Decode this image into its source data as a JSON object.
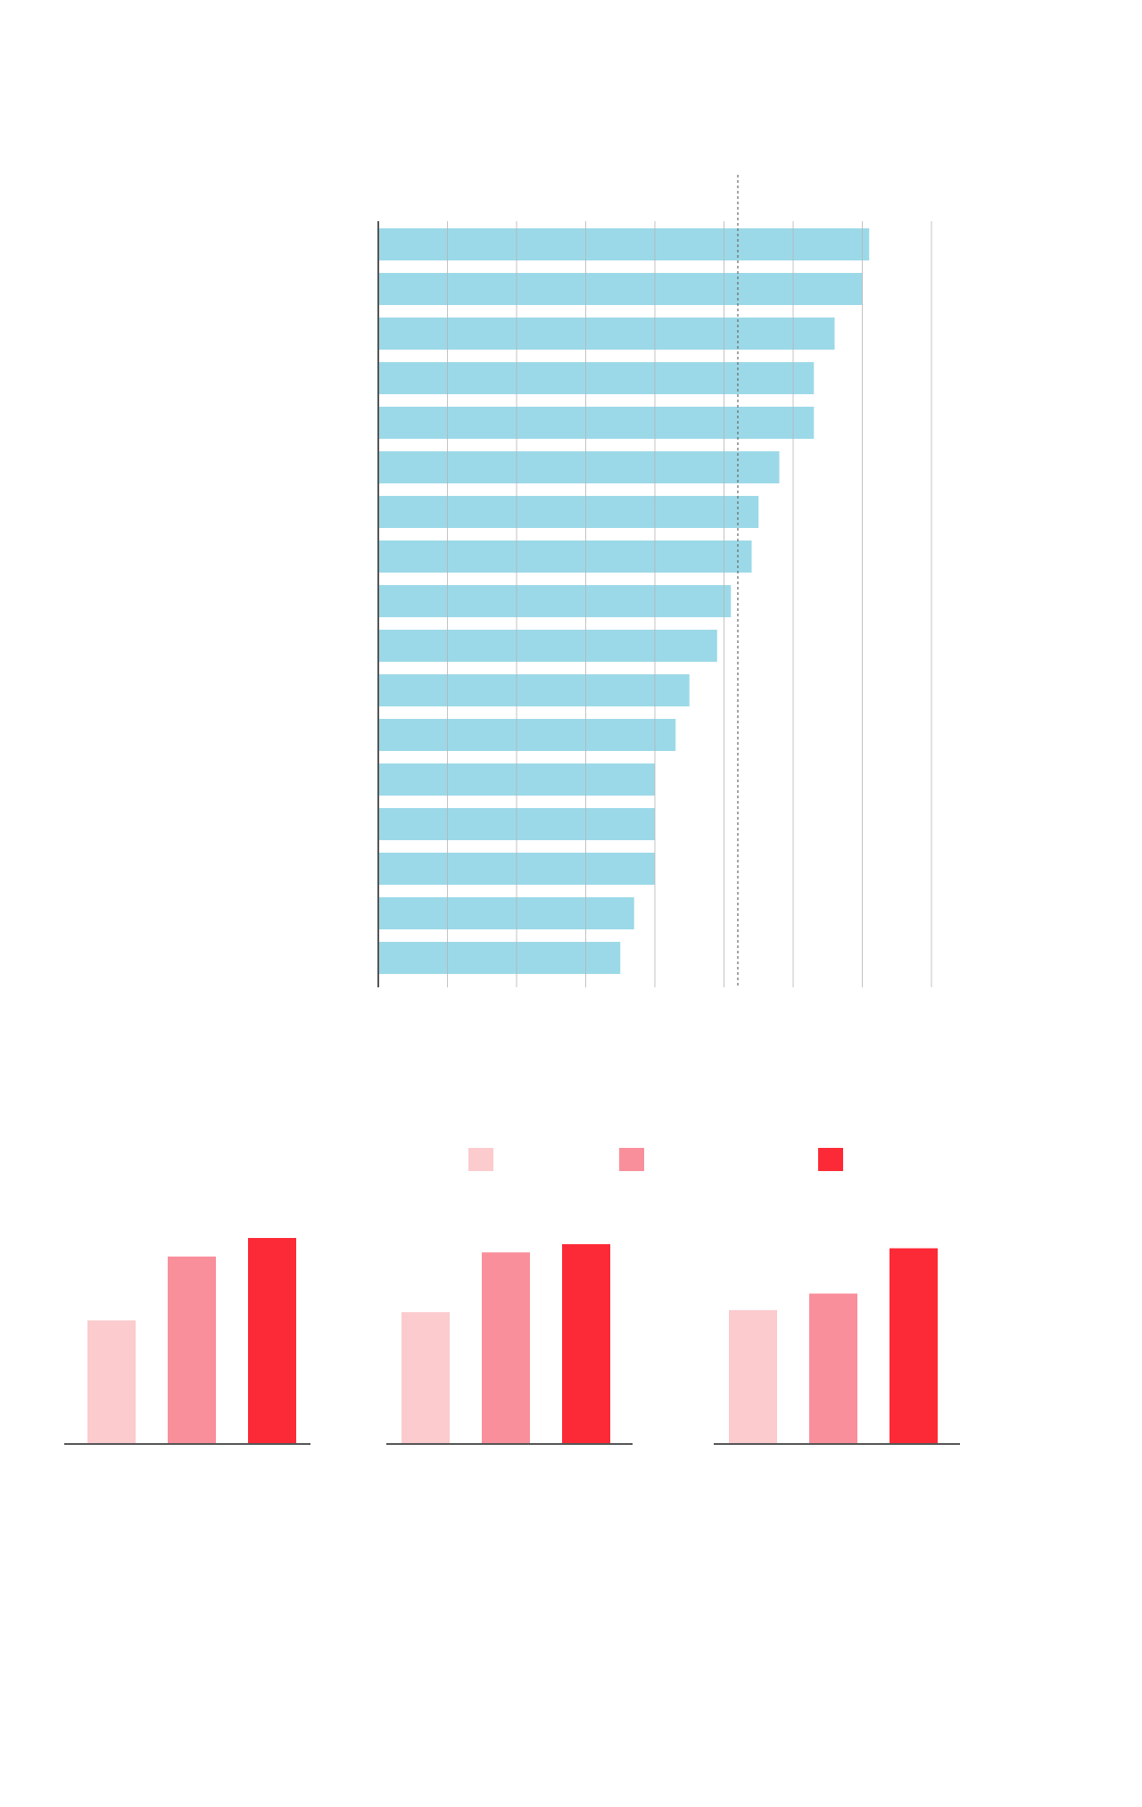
{
  "colors": {
    "bar": "#9cd9e8",
    "grid": "#b4b4b4",
    "axis": "#555555",
    "reference": "#666666",
    "group_colors": [
      "#fbcbce",
      "#f98f9b",
      "#fc2a36"
    ]
  },
  "chart_data": [
    {
      "type": "bar",
      "orientation": "horizontal",
      "title": "",
      "xlabel": "",
      "ylabel": "",
      "xlim": [
        0,
        8
      ],
      "grid": true,
      "gridlines": [
        1,
        2,
        3,
        4,
        5,
        6,
        7,
        8
      ],
      "reference_line": 5.2,
      "values": [
        7.1,
        7.0,
        6.6,
        6.3,
        6.3,
        5.8,
        5.5,
        5.4,
        5.1,
        4.9,
        4.5,
        4.3,
        4.0,
        4.0,
        4.0,
        3.7,
        3.5
      ]
    },
    {
      "type": "bar",
      "layout": "small-multiples",
      "title": "",
      "legend": {
        "position": "top",
        "entries": [
          "",
          "",
          ""
        ]
      },
      "ylim": [
        0,
        100
      ],
      "panels": [
        {
          "values": [
            60,
            91,
            100
          ]
        },
        {
          "values": [
            64,
            93,
            97
          ]
        },
        {
          "values": [
            65,
            73,
            95
          ]
        }
      ]
    }
  ]
}
